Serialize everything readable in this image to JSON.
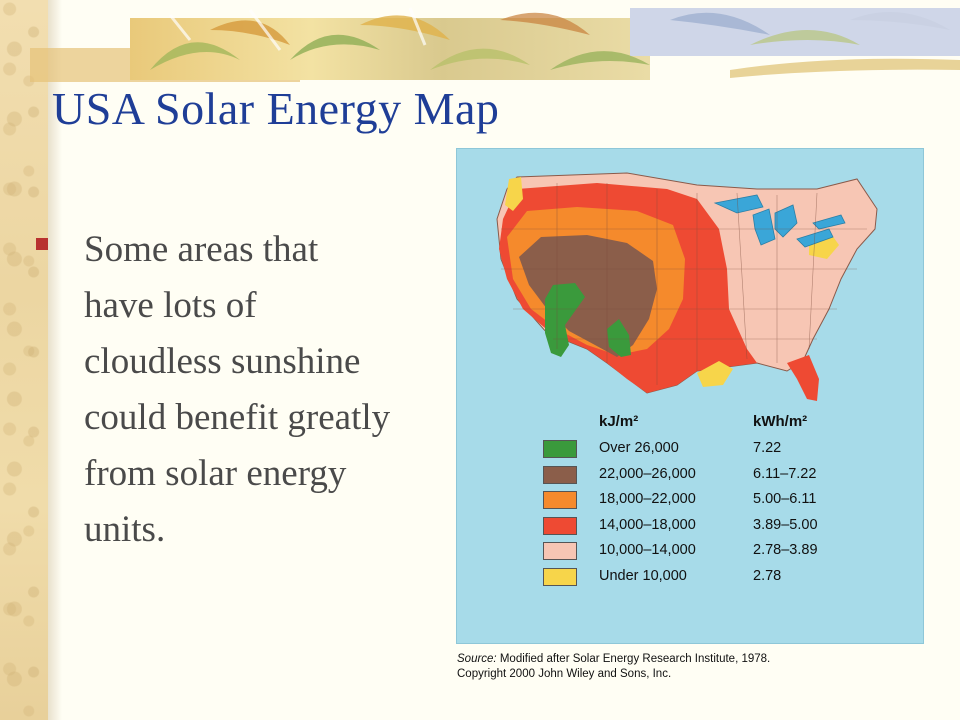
{
  "slide": {
    "title": "USA Solar Energy Map",
    "bullet": "Some areas that have lots of cloudless sunshine could benefit greatly from solar energy units."
  },
  "map": {
    "legend": {
      "header_kj": "kJ/m²",
      "header_kwh": "kWh/m²",
      "classes": [
        {
          "kj": "Over 26,000",
          "kwh": "7.22",
          "color": "#3a9a3c"
        },
        {
          "kj": "22,000–26,000",
          "kwh": "6.11–7.22",
          "color": "#8b5e4a"
        },
        {
          "kj": "18,000–22,000",
          "kwh": "5.00–6.11",
          "color": "#f58a2c"
        },
        {
          "kj": "14,000–18,000",
          "kwh": "3.89–5.00",
          "color": "#ee4a33"
        },
        {
          "kj": "10,000–14,000",
          "kwh": "2.78–3.89",
          "color": "#f7c6b4"
        },
        {
          "kj": "Under 10,000",
          "kwh": "2.78",
          "color": "#f7d54a"
        }
      ]
    },
    "source_label": "Source:",
    "source_text": "Modified after Solar Energy Research Institute, 1978.",
    "copyright": "Copyright 2000 John Wiley and Sons, Inc."
  },
  "colors": {
    "title": "#1f3e97",
    "bullet_marker": "#b8312f",
    "map_background": "#a7dbe9",
    "lake": "#3aa6d8"
  }
}
